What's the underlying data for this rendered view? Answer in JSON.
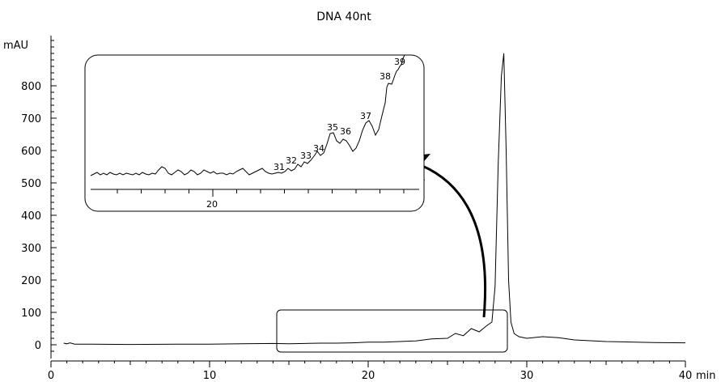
{
  "chart_data": {
    "type": "line",
    "title": "DNA 40nt",
    "xlabel": "min",
    "ylabel": "mAU",
    "xlim": [
      0,
      40
    ],
    "ylim": [
      -20,
      950
    ],
    "x_ticks": [
      0,
      10,
      20,
      30,
      40
    ],
    "x_tick_labels": [
      "0",
      "10",
      "20",
      "30",
      "40"
    ],
    "y_ticks": [
      0,
      100,
      200,
      300,
      400,
      500,
      600,
      700,
      800
    ],
    "y_tick_labels": [
      "0",
      "100",
      "200",
      "300",
      "400",
      "500",
      "600",
      "700",
      "800"
    ],
    "grid": false,
    "series": [
      {
        "x": [
          0.8,
          1.0,
          1.2,
          1.5,
          2.5,
          5,
          8,
          10,
          12,
          14,
          15,
          16,
          17,
          18,
          19,
          20,
          21,
          22,
          23,
          24,
          25,
          25.5,
          26,
          26.5,
          27,
          27.5,
          27.8,
          28.0,
          28.2,
          28.4,
          28.55,
          28.7,
          28.85,
          29.0,
          29.2,
          29.5,
          30,
          31,
          32,
          33,
          35,
          38,
          40
        ],
        "y": [
          5,
          3,
          6,
          2,
          2,
          1,
          2,
          2,
          3,
          4,
          3,
          4,
          5,
          5,
          6,
          8,
          8,
          10,
          12,
          18,
          20,
          35,
          28,
          50,
          40,
          60,
          70,
          180,
          560,
          830,
          900,
          600,
          200,
          70,
          35,
          25,
          20,
          25,
          22,
          15,
          10,
          7,
          6
        ]
      }
    ],
    "inset": {
      "x_ticks": [
        20
      ],
      "x_tick_labels": [
        "20"
      ],
      "peak_labels": [
        "31",
        "32",
        "33",
        "34",
        "35",
        "36",
        "37",
        "38",
        "39"
      ]
    },
    "annotations": [
      "zoom rectangle around the pre-peak region",
      "curved arrow pointing to the magnified inset"
    ]
  }
}
